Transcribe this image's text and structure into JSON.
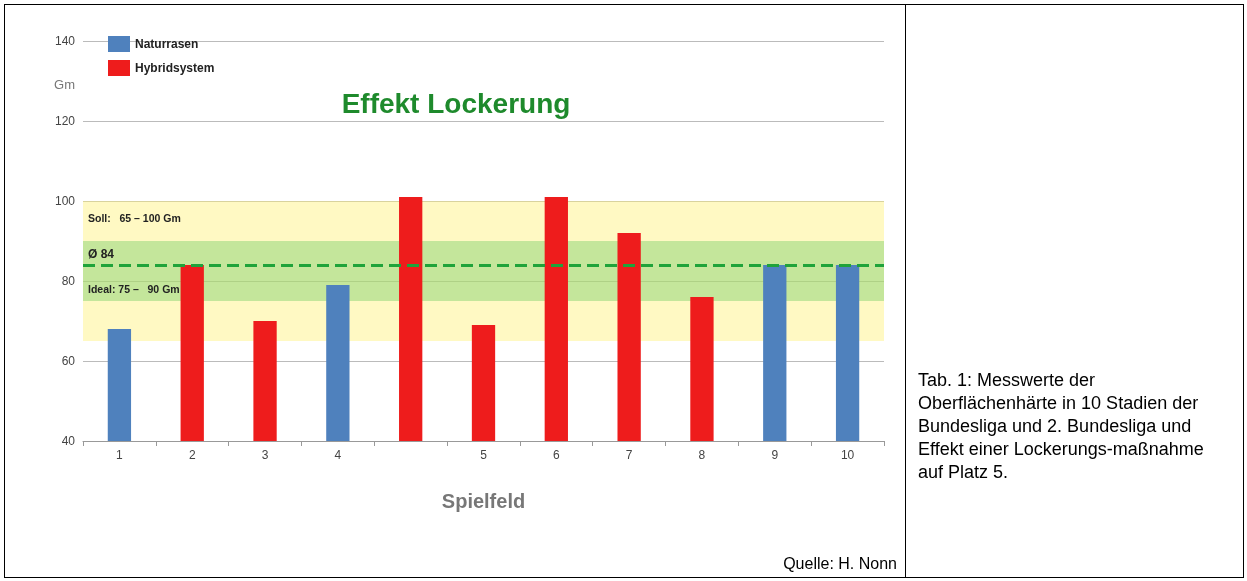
{
  "chart_data": {
    "type": "bar",
    "xlabel": "Spielfeld",
    "ylabel": "Gm",
    "categories": [
      "1",
      "2",
      "3",
      "4",
      null,
      "5",
      "6",
      "7",
      "8",
      "9",
      "10"
    ],
    "series": [
      {
        "name": "Naturrasen",
        "color": "#4f81bd",
        "values": [
          68,
          null,
          null,
          79,
          null,
          null,
          null,
          null,
          null,
          84,
          84
        ]
      },
      {
        "name": "Hybridsystem",
        "color": "#ee1c1c",
        "values": [
          null,
          84,
          70,
          null,
          101,
          69,
          101,
          92,
          76,
          null,
          null
        ]
      }
    ],
    "stacked": true,
    "ylim": [
      40,
      140
    ],
    "yticks": [
      40,
      60,
      80,
      100,
      120,
      140
    ],
    "grid": "y",
    "legend": "top left",
    "bands": [
      {
        "axis": "y",
        "from": 65,
        "to": 100,
        "label": "Soll:   65 – 100 Gm",
        "color": "#fff27a"
      },
      {
        "axis": "y",
        "from": 75,
        "to": 90,
        "label": "Ideal: 75 –   90 Gm",
        "color": "#7ccf6a"
      }
    ],
    "ref_lines": [
      {
        "axis": "y",
        "value": 84,
        "label": "Ø 84",
        "color": "#1fa33a",
        "line_style": "dashed"
      }
    ],
    "annotations": [
      "Effekt Lockerung",
      "Tab. 1: Messwerte der Oberflächenhärte in 10 Stadien der Bundesliga und 2. Bundesliga und Effekt einer Lockerungs-maßnahme auf Platz 5.",
      "Quelle: H. Nonn"
    ]
  }
}
